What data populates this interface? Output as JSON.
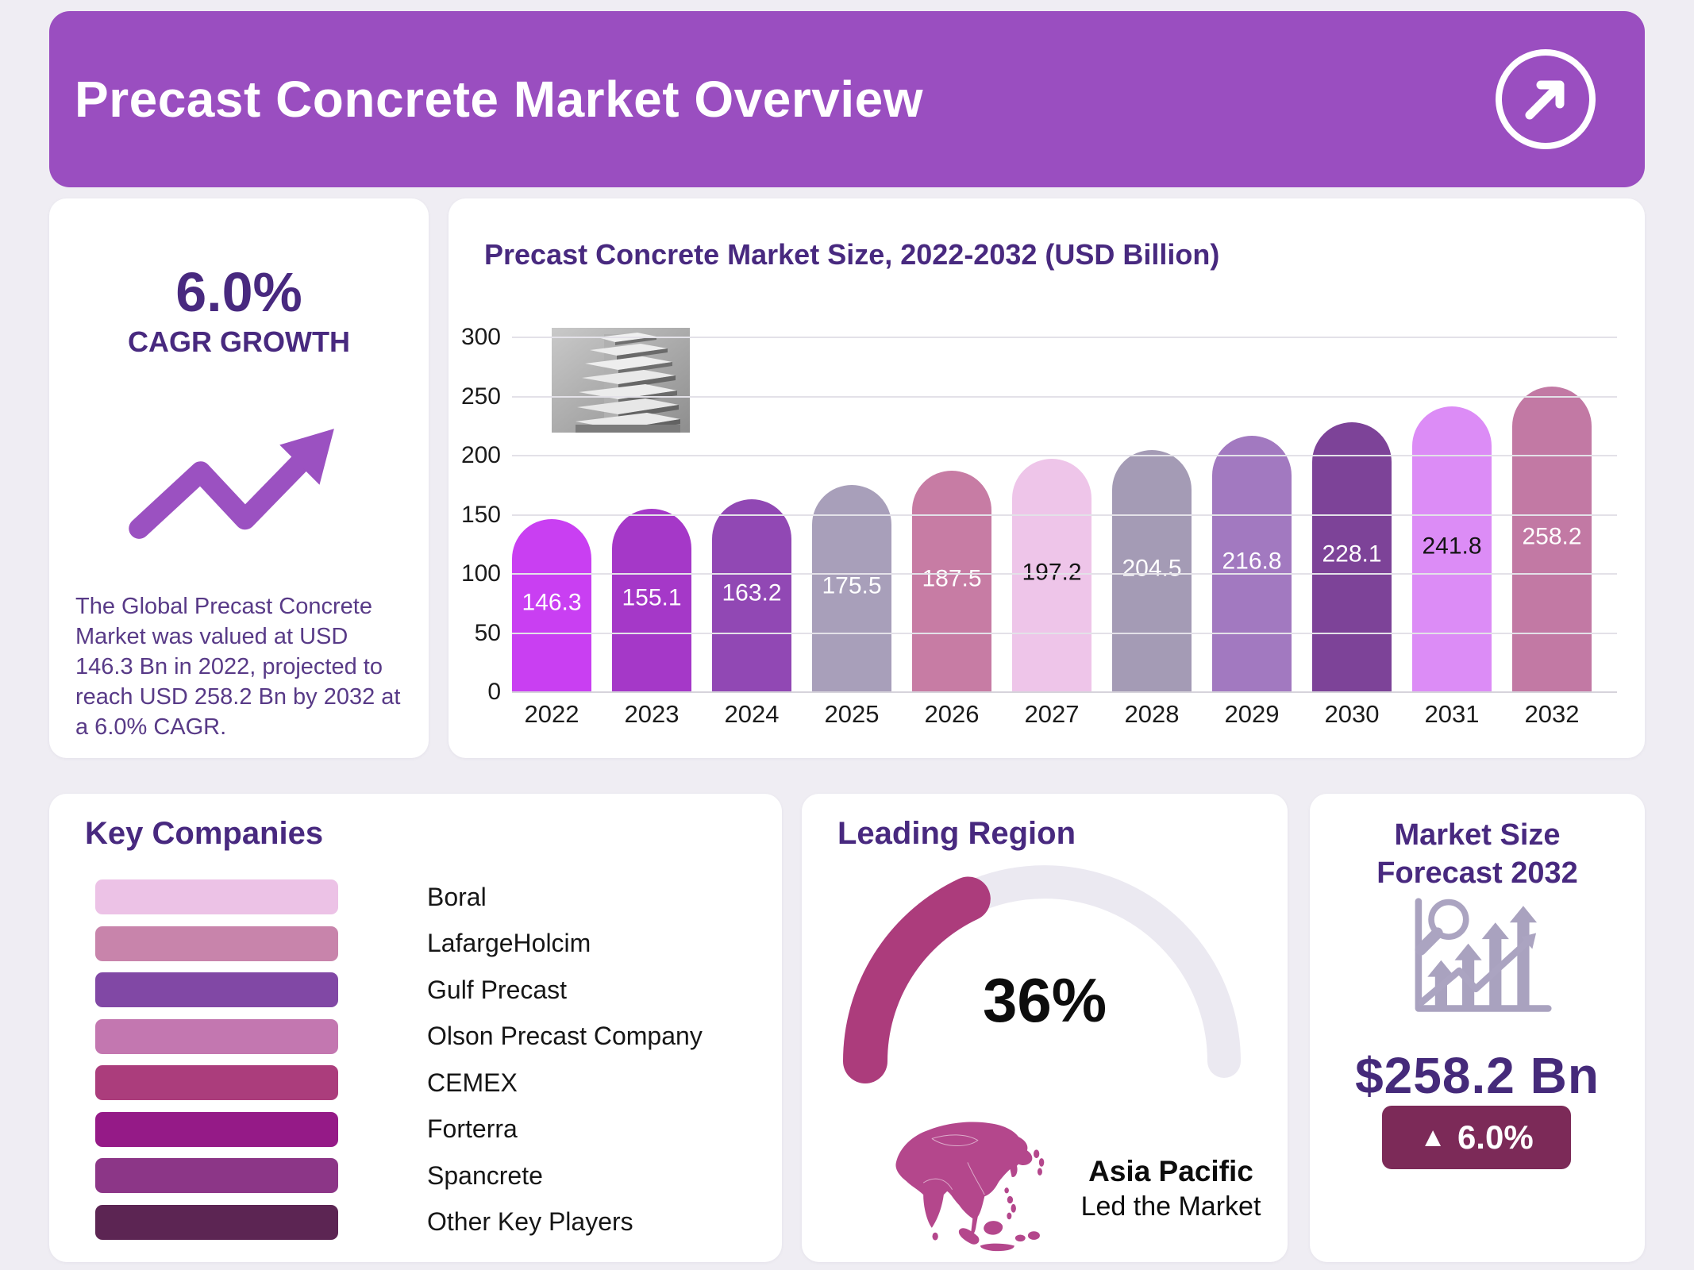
{
  "header": {
    "title": "Precast Concrete Market Overview",
    "bg": "#9a4ec0",
    "arrow_icon": "arrow-up-right-circle-icon"
  },
  "cagr_card": {
    "value": "6.0%",
    "label": "CAGR GROWTH",
    "trend_icon": "trend-up-arrow-icon",
    "trend_color": "#9b51c1",
    "description": "The Global Precast Concrete Market was valued at USD 146.3 Bn in 2022, projected to reach USD 258.2 Bn by 2032 at a 6.0% CAGR."
  },
  "chart_card": {
    "title": "Precast Concrete Market Size, 2022-2032 (USD Billion)",
    "image": "building-photo"
  },
  "chart_data": {
    "type": "bar",
    "title": "Precast Concrete Market Size, 2022-2032 (USD Billion)",
    "categories": [
      "2022",
      "2023",
      "2024",
      "2025",
      "2026",
      "2027",
      "2028",
      "2029",
      "2030",
      "2031",
      "2032"
    ],
    "values": [
      146.3,
      155.1,
      163.2,
      175.5,
      187.5,
      197.2,
      204.5,
      216.8,
      228.1,
      241.8,
      258.2
    ],
    "bar_colors": [
      "#c93ff2",
      "#a538c8",
      "#9148b4",
      "#a89fba",
      "#c77ca4",
      "#eec5e9",
      "#a49bb5",
      "#a279c0",
      "#7d4398",
      "#dc8cf6",
      "#c279a4"
    ],
    "value_label_colors": [
      "#ffffff",
      "#ffffff",
      "#ffffff",
      "#ffffff",
      "#ffffff",
      "#141414",
      "#ffffff",
      "#ffffff",
      "#ffffff",
      "#141414",
      "#ffffff"
    ],
    "xlabel": "",
    "ylabel": "",
    "ylim": [
      0,
      300
    ],
    "yticks": [
      0,
      50,
      100,
      150,
      200,
      250,
      300
    ],
    "grid": true,
    "legend": false
  },
  "key_companies": {
    "title": "Key Companies",
    "items": [
      {
        "name": "Boral",
        "color": "#ecc2e6"
      },
      {
        "name": "LafargeHolcim",
        "color": "#c884ab"
      },
      {
        "name": "Gulf Precast",
        "color": "#8148a5"
      },
      {
        "name": "Olson Precast Company",
        "color": "#c377b0"
      },
      {
        "name": "CEMEX",
        "color": "#ab3d7c"
      },
      {
        "name": "Forterra",
        "color": "#951a87"
      },
      {
        "name": "Spancrete",
        "color": "#8c3687"
      },
      {
        "name": "Other Key Players",
        "color": "#5c2553"
      }
    ]
  },
  "leading_region": {
    "title": "Leading Region",
    "percent": "36%",
    "value": 36,
    "region": "Asia Pacific",
    "caption": "Led the Market",
    "gauge_color": "#ac3c7c",
    "track_color": "#ebe9f1",
    "map_icon": "asia-map-icon",
    "map_color": "#b4478c"
  },
  "forecast_card": {
    "title_line1": "Market Size",
    "title_line2": "Forecast 2032",
    "icon": "growth-chart-magnifier-icon",
    "icon_color": "#a9a2bf",
    "value": "$258.2 Bn",
    "badge_arrow": "▲",
    "badge_text": "6.0%",
    "badge_bg": "#7c2a58"
  }
}
